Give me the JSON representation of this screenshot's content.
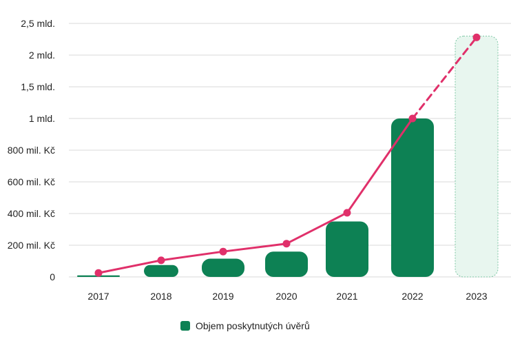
{
  "chart_data": {
    "type": "bar",
    "categories": [
      "2017",
      "2018",
      "2019",
      "2020",
      "2021",
      "2022",
      "2023"
    ],
    "series": [
      {
        "name": "Objem poskytnutých úvěrů",
        "type": "bar",
        "values": [
          10,
          75,
          115,
          160,
          350,
          1000,
          2300
        ],
        "projected": [
          false,
          false,
          false,
          false,
          false,
          false,
          true
        ]
      },
      {
        "type": "line",
        "values": [
          25,
          105,
          160,
          210,
          405,
          1000,
          2280
        ],
        "projected_from_index": 5
      }
    ],
    "y_ticks": [
      {
        "value": 0,
        "label": "0"
      },
      {
        "value": 200,
        "label": "200 mil. Kč"
      },
      {
        "value": 400,
        "label": "400 mil. Kč"
      },
      {
        "value": 600,
        "label": "600 mil. Kč"
      },
      {
        "value": 800,
        "label": "800 mil. Kč"
      },
      {
        "value": 1000,
        "label": "1 mld."
      },
      {
        "value": 1500,
        "label": "1,5 mld."
      },
      {
        "value": 2000,
        "label": "2 mld."
      },
      {
        "value": 2500,
        "label": "2,5 mld."
      }
    ],
    "ylim": [
      0,
      2500
    ],
    "grid": true,
    "legend_position": "bottom-center",
    "colors": {
      "bar": "#0d8154",
      "bar_projected_fill": "#e8f6ef",
      "bar_projected_stroke": "#7cc6a3",
      "line": "#e0306a",
      "grid": "#d9d9d9",
      "text": "#222222"
    }
  }
}
